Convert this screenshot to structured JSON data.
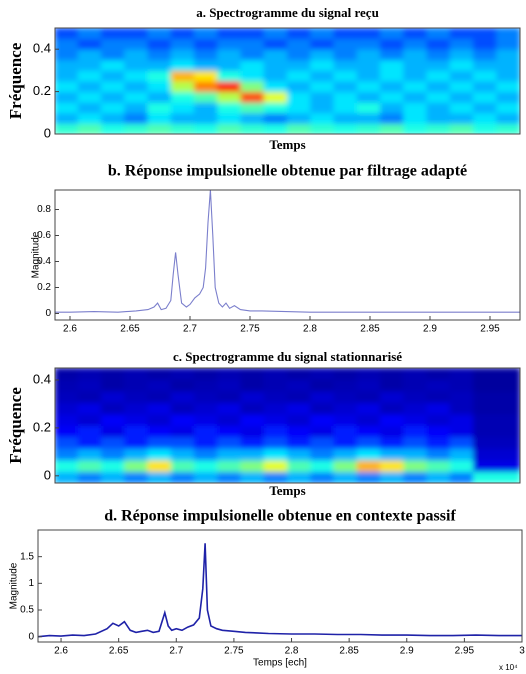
{
  "chart_data": [
    {
      "type": "heatmap",
      "title": "a. Spectrogramme du signal reçu",
      "ylabel": "Fréquence",
      "xlabel": "Temps",
      "colormap": "jet",
      "ylim": [
        0,
        0.5
      ],
      "yticks": [
        0,
        0.2,
        0.4
      ],
      "z": [
        [
          0.42,
          0.45,
          0.4,
          0.42,
          0.45,
          0.42,
          0.4,
          0.45,
          0.42,
          0.4,
          0.45,
          0.42,
          0.4,
          0.42,
          0.45,
          0.4,
          0.42,
          0.45,
          0.4,
          0.42
        ],
        [
          0.3,
          0.35,
          0.3,
          0.25,
          0.35,
          0.3,
          0.3,
          0.35,
          0.3,
          0.25,
          0.3,
          0.35,
          0.3,
          0.3,
          0.25,
          0.35,
          0.3,
          0.3,
          0.35,
          0.3
        ],
        [
          0.35,
          0.3,
          0.35,
          0.3,
          0.4,
          0.35,
          0.3,
          0.4,
          0.45,
          0.4,
          0.35,
          0.3,
          0.35,
          0.4,
          0.3,
          0.35,
          0.3,
          0.35,
          0.3,
          0.35
        ],
        [
          0.3,
          0.35,
          0.3,
          0.35,
          0.3,
          0.4,
          0.45,
          0.55,
          0.8,
          0.6,
          0.35,
          0.3,
          0.35,
          0.3,
          0.35,
          0.3,
          0.35,
          0.3,
          0.35,
          0.3
        ],
        [
          0.35,
          0.3,
          0.35,
          0.3,
          0.35,
          0.55,
          0.75,
          0.85,
          0.5,
          0.35,
          0.3,
          0.35,
          0.3,
          0.35,
          0.3,
          0.35,
          0.3,
          0.35,
          0.3,
          0.35
        ],
        [
          0.3,
          0.35,
          0.3,
          0.35,
          0.4,
          0.7,
          0.65,
          0.4,
          0.35,
          0.3,
          0.35,
          0.3,
          0.35,
          0.3,
          0.35,
          0.3,
          0.35,
          0.3,
          0.35,
          0.3
        ],
        [
          0.3,
          0.3,
          0.35,
          0.3,
          0.3,
          0.35,
          0.3,
          0.3,
          0.35,
          0.3,
          0.3,
          0.35,
          0.3,
          0.3,
          0.35,
          0.3,
          0.3,
          0.35,
          0.3,
          0.3
        ],
        [
          0.25,
          0.3,
          0.25,
          0.3,
          0.25,
          0.3,
          0.25,
          0.3,
          0.25,
          0.3,
          0.25,
          0.3,
          0.25,
          0.3,
          0.25,
          0.3,
          0.25,
          0.3,
          0.25,
          0.3
        ],
        [
          0.25,
          0.2,
          0.25,
          0.25,
          0.2,
          0.25,
          0.2,
          0.25,
          0.25,
          0.2,
          0.25,
          0.2,
          0.25,
          0.25,
          0.2,
          0.25,
          0.2,
          0.25,
          0.2,
          0.25
        ],
        [
          0.2,
          0.25,
          0.2,
          0.2,
          0.25,
          0.2,
          0.25,
          0.2,
          0.2,
          0.25,
          0.2,
          0.25,
          0.2,
          0.2,
          0.25,
          0.2,
          0.25,
          0.2,
          0.2,
          0.25
        ]
      ]
    },
    {
      "type": "line",
      "title": "b. Réponse impulsionelle obtenue par filtrage adapté",
      "ylabel": "Magnitude",
      "color": "#7b7fcc",
      "xlim": [
        2.5875,
        2.975
      ],
      "xticks": [
        2.6,
        2.65,
        2.7,
        2.75,
        2.8,
        2.85,
        2.9,
        2.95
      ],
      "ylim": [
        -0.05,
        0.95
      ],
      "yticks": [
        0,
        0.2,
        0.4,
        0.6,
        0.8
      ],
      "x": [
        2.5875,
        2.6,
        2.62,
        2.64,
        2.655,
        2.665,
        2.67,
        2.673,
        2.676,
        2.68,
        2.684,
        2.686,
        2.688,
        2.69,
        2.693,
        2.697,
        2.7,
        2.704,
        2.708,
        2.711,
        2.713,
        2.715,
        2.717,
        2.719,
        2.721,
        2.724,
        2.727,
        2.73,
        2.733,
        2.737,
        2.742,
        2.75,
        2.76,
        2.78,
        2.8,
        2.85,
        2.9,
        2.95,
        2.975
      ],
      "values": [
        0.01,
        0.01,
        0.015,
        0.01,
        0.02,
        0.03,
        0.05,
        0.08,
        0.03,
        0.04,
        0.1,
        0.3,
        0.47,
        0.3,
        0.08,
        0.05,
        0.07,
        0.12,
        0.15,
        0.2,
        0.35,
        0.7,
        0.95,
        0.6,
        0.2,
        0.08,
        0.05,
        0.08,
        0.04,
        0.06,
        0.03,
        0.02,
        0.02,
        0.015,
        0.01,
        0.01,
        0.01,
        0.01,
        0.01
      ]
    },
    {
      "type": "heatmap",
      "title": "c. Spectrogramme du signal stationnarisé",
      "ylabel": "Fréquence",
      "xlabel": "Temps",
      "colormap": "jet",
      "ylim": [
        -0.03,
        0.45
      ],
      "yticks": [
        0,
        0.2,
        0.4
      ],
      "z": [
        [
          0.3,
          0.25,
          0.3,
          0.25,
          0.3,
          0.25,
          0.3,
          0.25,
          0.3,
          0.25,
          0.3,
          0.25,
          0.3,
          0.25,
          0.3,
          0.25,
          0.3,
          0.25,
          0.4,
          0.4
        ],
        [
          0.4,
          0.45,
          0.4,
          0.5,
          0.65,
          0.45,
          0.4,
          0.45,
          0.5,
          0.6,
          0.45,
          0.4,
          0.5,
          0.7,
          0.65,
          0.5,
          0.45,
          0.4,
          0.1,
          0.1
        ],
        [
          0.25,
          0.3,
          0.25,
          0.3,
          0.35,
          0.3,
          0.25,
          0.3,
          0.3,
          0.35,
          0.3,
          0.25,
          0.3,
          0.35,
          0.3,
          0.3,
          0.25,
          0.3,
          0.08,
          0.08
        ],
        [
          0.2,
          0.15,
          0.2,
          0.15,
          0.2,
          0.2,
          0.15,
          0.2,
          0.15,
          0.2,
          0.15,
          0.2,
          0.15,
          0.2,
          0.15,
          0.2,
          0.15,
          0.2,
          0.06,
          0.06
        ],
        [
          0.12,
          0.15,
          0.1,
          0.15,
          0.12,
          0.1,
          0.15,
          0.12,
          0.1,
          0.15,
          0.12,
          0.1,
          0.15,
          0.12,
          0.1,
          0.15,
          0.12,
          0.1,
          0.05,
          0.05
        ],
        [
          0.1,
          0.08,
          0.12,
          0.1,
          0.08,
          0.12,
          0.1,
          0.08,
          0.12,
          0.1,
          0.08,
          0.12,
          0.1,
          0.08,
          0.12,
          0.1,
          0.08,
          0.1,
          0.05,
          0.05
        ],
        [
          0.08,
          0.1,
          0.06,
          0.08,
          0.1,
          0.06,
          0.08,
          0.1,
          0.06,
          0.08,
          0.1,
          0.06,
          0.08,
          0.1,
          0.06,
          0.08,
          0.1,
          0.06,
          0.04,
          0.04
        ],
        [
          0.06,
          0.05,
          0.08,
          0.06,
          0.05,
          0.08,
          0.06,
          0.05,
          0.08,
          0.06,
          0.05,
          0.08,
          0.06,
          0.05,
          0.08,
          0.06,
          0.05,
          0.06,
          0.04,
          0.04
        ],
        [
          0.05,
          0.06,
          0.04,
          0.05,
          0.06,
          0.04,
          0.05,
          0.06,
          0.04,
          0.05,
          0.06,
          0.04,
          0.05,
          0.06,
          0.04,
          0.05,
          0.06,
          0.05,
          0.03,
          0.03
        ],
        [
          0.04,
          0.05,
          0.04,
          0.05,
          0.04,
          0.05,
          0.04,
          0.05,
          0.04,
          0.05,
          0.04,
          0.05,
          0.04,
          0.05,
          0.04,
          0.05,
          0.04,
          0.05,
          0.03,
          0.03
        ]
      ]
    },
    {
      "type": "line",
      "title": "d. Réponse impulsionelle obtenue en contexte passif",
      "ylabel": "Magnitude",
      "xlabel": "Temps [ech]",
      "x_multiplier": "x 10⁴",
      "color": "#1f22a8",
      "xlim": [
        2.58,
        3.0
      ],
      "xticks": [
        2.6,
        2.65,
        2.7,
        2.75,
        2.8,
        2.85,
        2.9,
        2.95,
        3
      ],
      "ylim": [
        -0.1,
        2.0
      ],
      "yticks": [
        0,
        0.5,
        1,
        1.5
      ],
      "x": [
        2.58,
        2.59,
        2.6,
        2.61,
        2.62,
        2.63,
        2.64,
        2.645,
        2.65,
        2.655,
        2.66,
        2.665,
        2.67,
        2.675,
        2.68,
        2.685,
        2.69,
        2.693,
        2.696,
        2.7,
        2.705,
        2.71,
        2.715,
        2.72,
        2.723,
        2.725,
        2.727,
        2.73,
        2.735,
        2.74,
        2.75,
        2.76,
        2.77,
        2.78,
        2.8,
        2.82,
        2.84,
        2.86,
        2.88,
        2.9,
        2.92,
        2.94,
        2.96,
        2.98,
        3.0
      ],
      "values": [
        0,
        0.02,
        0.01,
        0.03,
        0.02,
        0.05,
        0.15,
        0.25,
        0.2,
        0.28,
        0.12,
        0.08,
        0.1,
        0.12,
        0.08,
        0.1,
        0.45,
        0.2,
        0.12,
        0.15,
        0.12,
        0.18,
        0.22,
        0.35,
        0.9,
        1.75,
        0.5,
        0.2,
        0.15,
        0.12,
        0.1,
        0.08,
        0.07,
        0.06,
        0.05,
        0.05,
        0.04,
        0.04,
        0.03,
        0.03,
        0.02,
        0.02,
        0.03,
        0.02,
        0.02
      ]
    }
  ]
}
